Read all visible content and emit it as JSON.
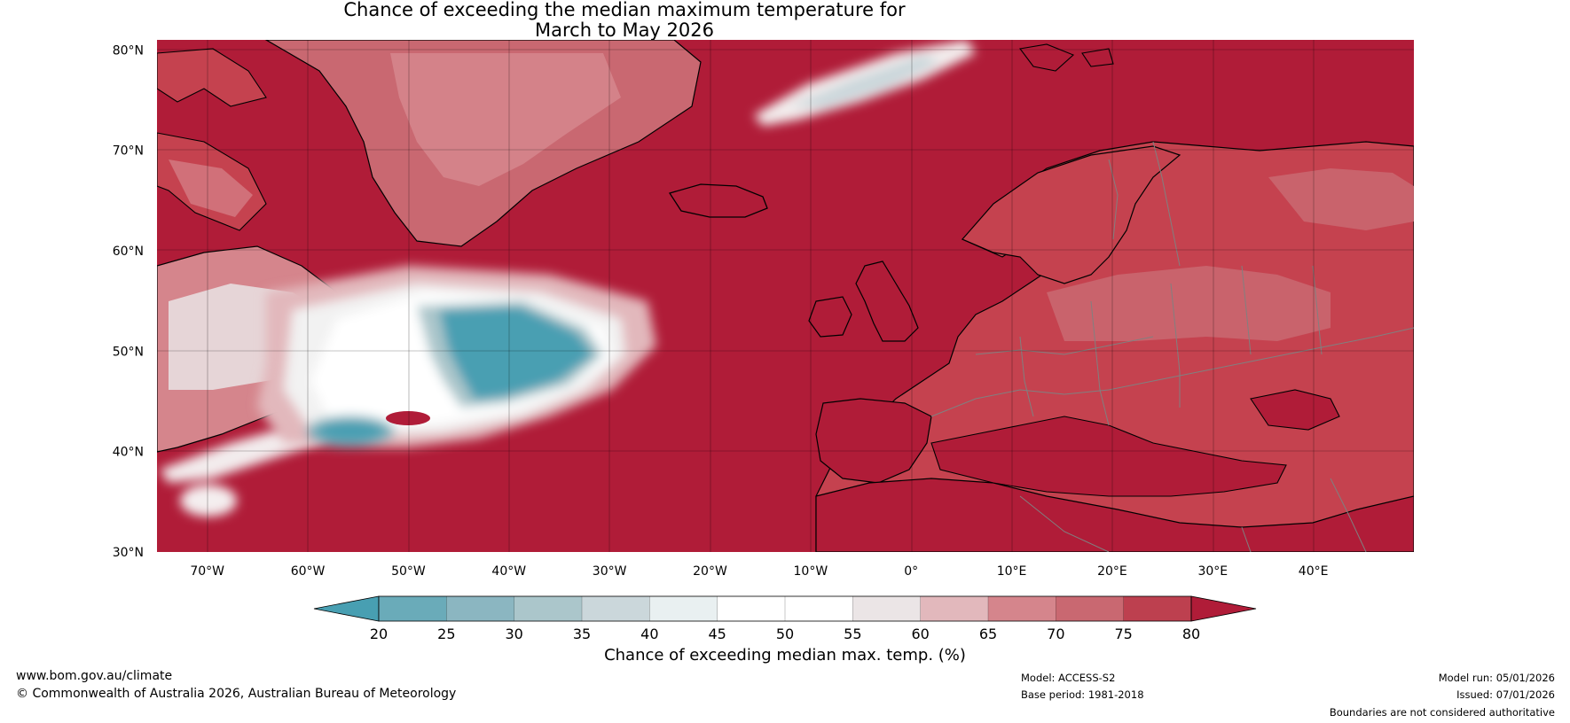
{
  "title": {
    "line1": "Chance of exceeding the median maximum temperature for",
    "line2": "March to May 2026"
  },
  "map": {
    "lat_labels": [
      "80°N",
      "70°N",
      "60°N",
      "50°N",
      "40°N",
      "30°N"
    ],
    "lon_labels": [
      "70°W",
      "60°W",
      "50°W",
      "40°W",
      "30°W",
      "20°W",
      "10°W",
      "0°",
      "10°E",
      "20°E",
      "30°E",
      "40°E"
    ],
    "lat_values": [
      80,
      70,
      60,
      50,
      40,
      30
    ],
    "lon_values": [
      -70,
      -60,
      -50,
      -40,
      -30,
      -20,
      -10,
      0,
      10,
      20,
      30,
      40
    ],
    "lat_range": [
      30,
      81
    ],
    "lon_range": [
      -75,
      50
    ],
    "colors": {
      "ocean_high": "#b01c38",
      "land_high": "#c5424f",
      "coast": "#000000",
      "borders": "#808080"
    }
  },
  "colorbar": {
    "label": "Chance of exceeding median max. temp. (%)",
    "ticks": [
      "20",
      "25",
      "30",
      "35",
      "40",
      "45",
      "50",
      "55",
      "60",
      "65",
      "70",
      "75",
      "80"
    ],
    "colors": [
      "#489fb2",
      "#6aabb9",
      "#8bb6c1",
      "#abc6cb",
      "#cbd7db",
      "#e9f0f1",
      "#ffffff",
      "#ffffff",
      "#ebe5e6",
      "#e2b8bc",
      "#d5858c",
      "#c96871",
      "#bd404f",
      "#b01c38"
    ]
  },
  "footer": {
    "website": "www.bom.gov.au/climate",
    "copyright": "© Commonwealth of Australia 2026, Australian Bureau of Meteorology",
    "model": "Model: ACCESS-S2",
    "base_period": "Base period: 1981-2018",
    "model_run": "Model run: 05/01/2026",
    "issued": "Issued: 07/01/2026",
    "disclaimer": "Boundaries are not considered authoritative"
  }
}
